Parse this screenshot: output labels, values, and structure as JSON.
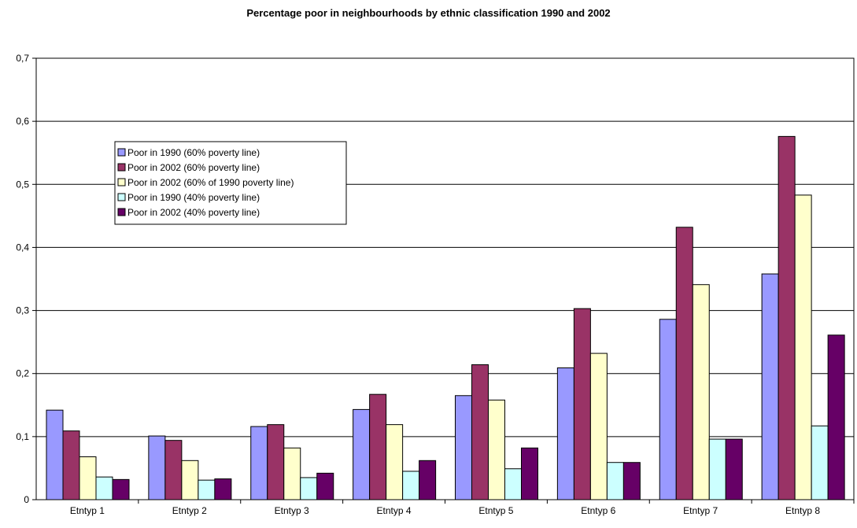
{
  "chart_data": {
    "type": "bar",
    "title": "Percentage poor in neighbourhoods by ethnic classification 1990 and 2002",
    "xlabel": "",
    "ylabel": "",
    "categories": [
      "Etntyp 1",
      "Etntyp 2",
      "Etntyp 3",
      "Etntyp 4",
      "Etntyp 5",
      "Etntyp 6",
      "Etntyp 7",
      "Etntyp 8"
    ],
    "ylim": [
      0,
      0.7
    ],
    "yticks": [
      0,
      0.1,
      0.2,
      0.3,
      0.4,
      0.5,
      0.6,
      0.7
    ],
    "ytick_labels": [
      "0",
      "0,1",
      "0,2",
      "0,3",
      "0,4",
      "0,5",
      "0,6",
      "0,7"
    ],
    "grid": true,
    "legend_position": "upper-left inside plot",
    "series": [
      {
        "name": "Poor in 1990 (60% poverty line)",
        "color": "#9999ff",
        "values": [
          0.142,
          0.101,
          0.116,
          0.143,
          0.165,
          0.209,
          0.286,
          0.358
        ]
      },
      {
        "name": "Poor in 2002 (60% poverty line)",
        "color": "#993366",
        "values": [
          0.109,
          0.094,
          0.119,
          0.167,
          0.214,
          0.303,
          0.432,
          0.576
        ]
      },
      {
        "name": "Poor in 2002 (60% of 1990 poverty line)",
        "color": "#ffffcc",
        "values": [
          0.068,
          0.062,
          0.082,
          0.119,
          0.158,
          0.232,
          0.341,
          0.483
        ]
      },
      {
        "name": "Poor in 1990 (40% poverty line)",
        "color": "#ccffff",
        "values": [
          0.036,
          0.031,
          0.035,
          0.045,
          0.049,
          0.059,
          0.096,
          0.117
        ]
      },
      {
        "name": "Poor in 2002 (40% poverty line)",
        "color": "#660066",
        "values": [
          0.032,
          0.033,
          0.042,
          0.062,
          0.082,
          0.059,
          0.096,
          0.261
        ]
      }
    ]
  }
}
